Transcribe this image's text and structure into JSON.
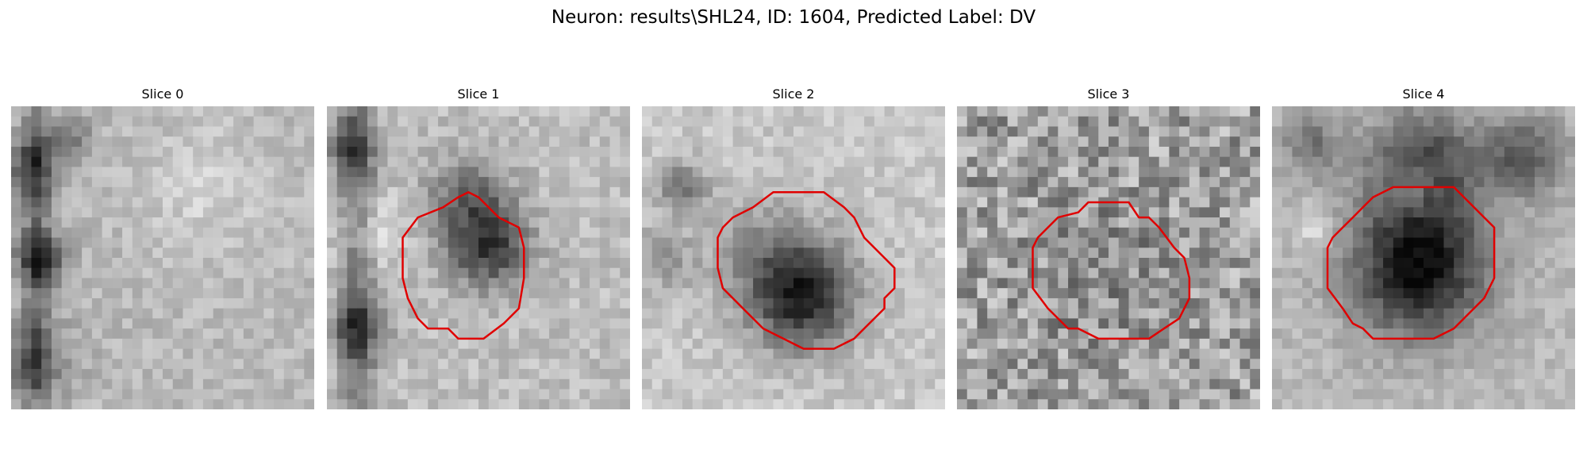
{
  "title": "Neuron: results\\SHL24, ID: 1604, Predicted Label: DV",
  "contour_color": "#e00000",
  "panels": [
    {
      "label": "Slice 0",
      "has_contour": false
    },
    {
      "label": "Slice 1",
      "has_contour": true
    },
    {
      "label": "Slice 2",
      "has_contour": true
    },
    {
      "label": "Slice 3",
      "has_contour": true
    },
    {
      "label": "Slice 4",
      "has_contour": true
    }
  ]
}
